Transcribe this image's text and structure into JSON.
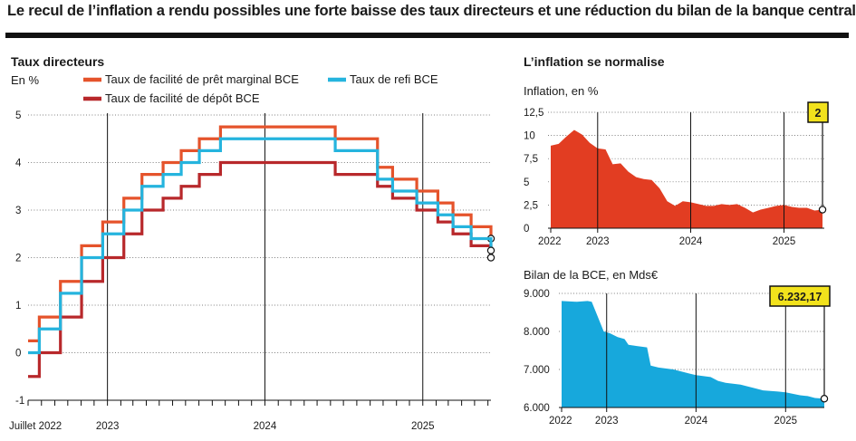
{
  "headline": "Le recul de l’inflation a rendu possibles une forte baisse des taux directeurs et une réduction du bilan de la banque centrale",
  "left": {
    "title": "Taux directeurs",
    "unit": "En %"
  },
  "right": {
    "title": "L’inflation se normalise"
  },
  "colors": {
    "marginal": "#e5532b",
    "refi": "#25b4de",
    "depot": "#b8282b",
    "inflation_fill": "#e23d22",
    "bilan_fill": "#17a8dc",
    "badge": "#f2e21c"
  },
  "chart_data": [
    {
      "type": "line",
      "title": "Taux directeurs",
      "ylabel": "En %",
      "ylim": [
        -1,
        5
      ],
      "yticks": [
        -1,
        0,
        1,
        2,
        3,
        4,
        5
      ],
      "xlim": [
        "2022-07-01",
        "2025-06-08"
      ],
      "xtick_labels": [
        "Juillet 2022",
        "2023",
        "2024",
        "2025"
      ],
      "xtick_dates": [
        "2022-07-01",
        "2023-01-01",
        "2024-01-01",
        "2025-01-01"
      ],
      "series": [
        {
          "name": "Taux de facilité de prêt marginal BCE",
          "key": "marginal",
          "x": [
            "2022-07-01",
            "2022-07-27",
            "2022-09-14",
            "2022-11-02",
            "2022-12-21",
            "2023-02-08",
            "2023-03-22",
            "2023-05-10",
            "2023-06-21",
            "2023-08-02",
            "2023-09-20",
            "2024-06-12",
            "2024-09-18",
            "2024-10-23",
            "2024-12-18",
            "2025-02-05",
            "2025-03-12",
            "2025-04-23",
            "2025-06-08"
          ],
          "y": [
            0.25,
            0.75,
            1.5,
            2.25,
            2.75,
            3.25,
            3.75,
            4.0,
            4.25,
            4.5,
            4.75,
            4.5,
            3.9,
            3.65,
            3.4,
            3.15,
            2.9,
            2.65,
            2.4
          ]
        },
        {
          "name": "Taux de refi BCE",
          "key": "refi",
          "x": [
            "2022-07-01",
            "2022-07-27",
            "2022-09-14",
            "2022-11-02",
            "2022-12-21",
            "2023-02-08",
            "2023-03-22",
            "2023-05-10",
            "2023-06-21",
            "2023-08-02",
            "2023-09-20",
            "2024-06-12",
            "2024-09-18",
            "2024-10-23",
            "2024-12-18",
            "2025-02-05",
            "2025-03-12",
            "2025-04-23",
            "2025-06-08"
          ],
          "y": [
            0.0,
            0.5,
            1.25,
            2.0,
            2.5,
            3.0,
            3.5,
            3.75,
            4.0,
            4.25,
            4.5,
            4.25,
            3.65,
            3.4,
            3.15,
            2.9,
            2.65,
            2.4,
            2.15
          ]
        },
        {
          "name": "Taux de facilité de dépôt BCE",
          "key": "depot",
          "x": [
            "2022-07-01",
            "2022-07-27",
            "2022-09-14",
            "2022-11-02",
            "2022-12-21",
            "2023-02-08",
            "2023-03-22",
            "2023-05-10",
            "2023-06-21",
            "2023-08-02",
            "2023-09-20",
            "2024-06-12",
            "2024-09-18",
            "2024-10-23",
            "2024-12-18",
            "2025-02-05",
            "2025-03-12",
            "2025-04-23",
            "2025-06-08"
          ],
          "y": [
            -0.5,
            0.0,
            0.75,
            1.5,
            2.0,
            2.5,
            3.0,
            3.25,
            3.5,
            3.75,
            4.0,
            3.75,
            3.5,
            3.25,
            3.0,
            2.75,
            2.5,
            2.25,
            2.0
          ]
        }
      ]
    },
    {
      "type": "area",
      "title": "Inflation, en %",
      "ylim": [
        0,
        12.5
      ],
      "ytick_labels": [
        "0",
        "2,5",
        "5",
        "7,5",
        "10",
        "12,5"
      ],
      "yticks": [
        0,
        2.5,
        5,
        7.5,
        10,
        12.5
      ],
      "xlim": [
        "2022-07-01",
        "2025-06-08"
      ],
      "xtick_labels": [
        "2022",
        "2023",
        "2024",
        "2025"
      ],
      "xtick_dates": [
        "2022-07-01",
        "2023-01-01",
        "2024-01-01",
        "2025-01-01"
      ],
      "badge": "2",
      "series": [
        {
          "x": [
            "2022-07-01",
            "2022-08-01",
            "2022-09-01",
            "2022-10-01",
            "2022-11-01",
            "2022-12-01",
            "2023-01-01",
            "2023-02-01",
            "2023-03-01",
            "2023-04-01",
            "2023-05-01",
            "2023-06-01",
            "2023-07-01",
            "2023-08-01",
            "2023-09-01",
            "2023-10-01",
            "2023-11-01",
            "2023-12-01",
            "2024-01-01",
            "2024-02-01",
            "2024-03-01",
            "2024-04-01",
            "2024-05-01",
            "2024-06-01",
            "2024-07-01",
            "2024-08-01",
            "2024-09-01",
            "2024-10-01",
            "2024-11-01",
            "2024-12-01",
            "2025-01-01",
            "2025-02-01",
            "2025-03-01",
            "2025-04-01",
            "2025-05-01",
            "2025-06-01"
          ],
          "y": [
            8.9,
            9.1,
            9.9,
            10.6,
            10.1,
            9.2,
            8.6,
            8.5,
            6.9,
            7.0,
            6.1,
            5.5,
            5.3,
            5.2,
            4.3,
            2.9,
            2.4,
            2.9,
            2.8,
            2.6,
            2.4,
            2.4,
            2.6,
            2.5,
            2.6,
            2.2,
            1.7,
            2.0,
            2.2,
            2.4,
            2.5,
            2.3,
            2.2,
            2.2,
            1.9,
            2.0
          ]
        }
      ]
    },
    {
      "type": "area",
      "title": "Bilan de la BCE, en Mds€",
      "ylim": [
        6000,
        9000
      ],
      "ytick_labels": [
        "6.000",
        "7.000",
        "8.000",
        "9.000"
      ],
      "yticks": [
        6000,
        7000,
        8000,
        9000
      ],
      "xlim": [
        "2022-07-01",
        "2025-06-08"
      ],
      "xtick_labels": [
        "2022",
        "2023",
        "2024",
        "2025"
      ],
      "xtick_dates": [
        "2022-07-01",
        "2023-01-01",
        "2024-01-01",
        "2025-01-01"
      ],
      "badge": "6.232,17",
      "series": [
        {
          "x": [
            "2022-07-01",
            "2022-09-01",
            "2022-10-15",
            "2022-11-01",
            "2022-11-25",
            "2022-12-20",
            "2023-01-15",
            "2023-02-15",
            "2023-03-15",
            "2023-03-31",
            "2023-05-01",
            "2023-06-15",
            "2023-06-30",
            "2023-08-01",
            "2023-10-01",
            "2023-12-01",
            "2024-01-01",
            "2024-03-01",
            "2024-03-31",
            "2024-05-01",
            "2024-07-01",
            "2024-09-01",
            "2024-10-01",
            "2024-12-01",
            "2025-01-01",
            "2025-03-01",
            "2025-04-01",
            "2025-05-01",
            "2025-06-08"
          ],
          "y": [
            8800,
            8780,
            8800,
            8780,
            8400,
            8000,
            7950,
            7850,
            7800,
            7650,
            7620,
            7580,
            7100,
            7050,
            7000,
            6900,
            6850,
            6800,
            6700,
            6650,
            6600,
            6500,
            6450,
            6420,
            6400,
            6320,
            6300,
            6250,
            6232.17
          ]
        }
      ]
    }
  ]
}
